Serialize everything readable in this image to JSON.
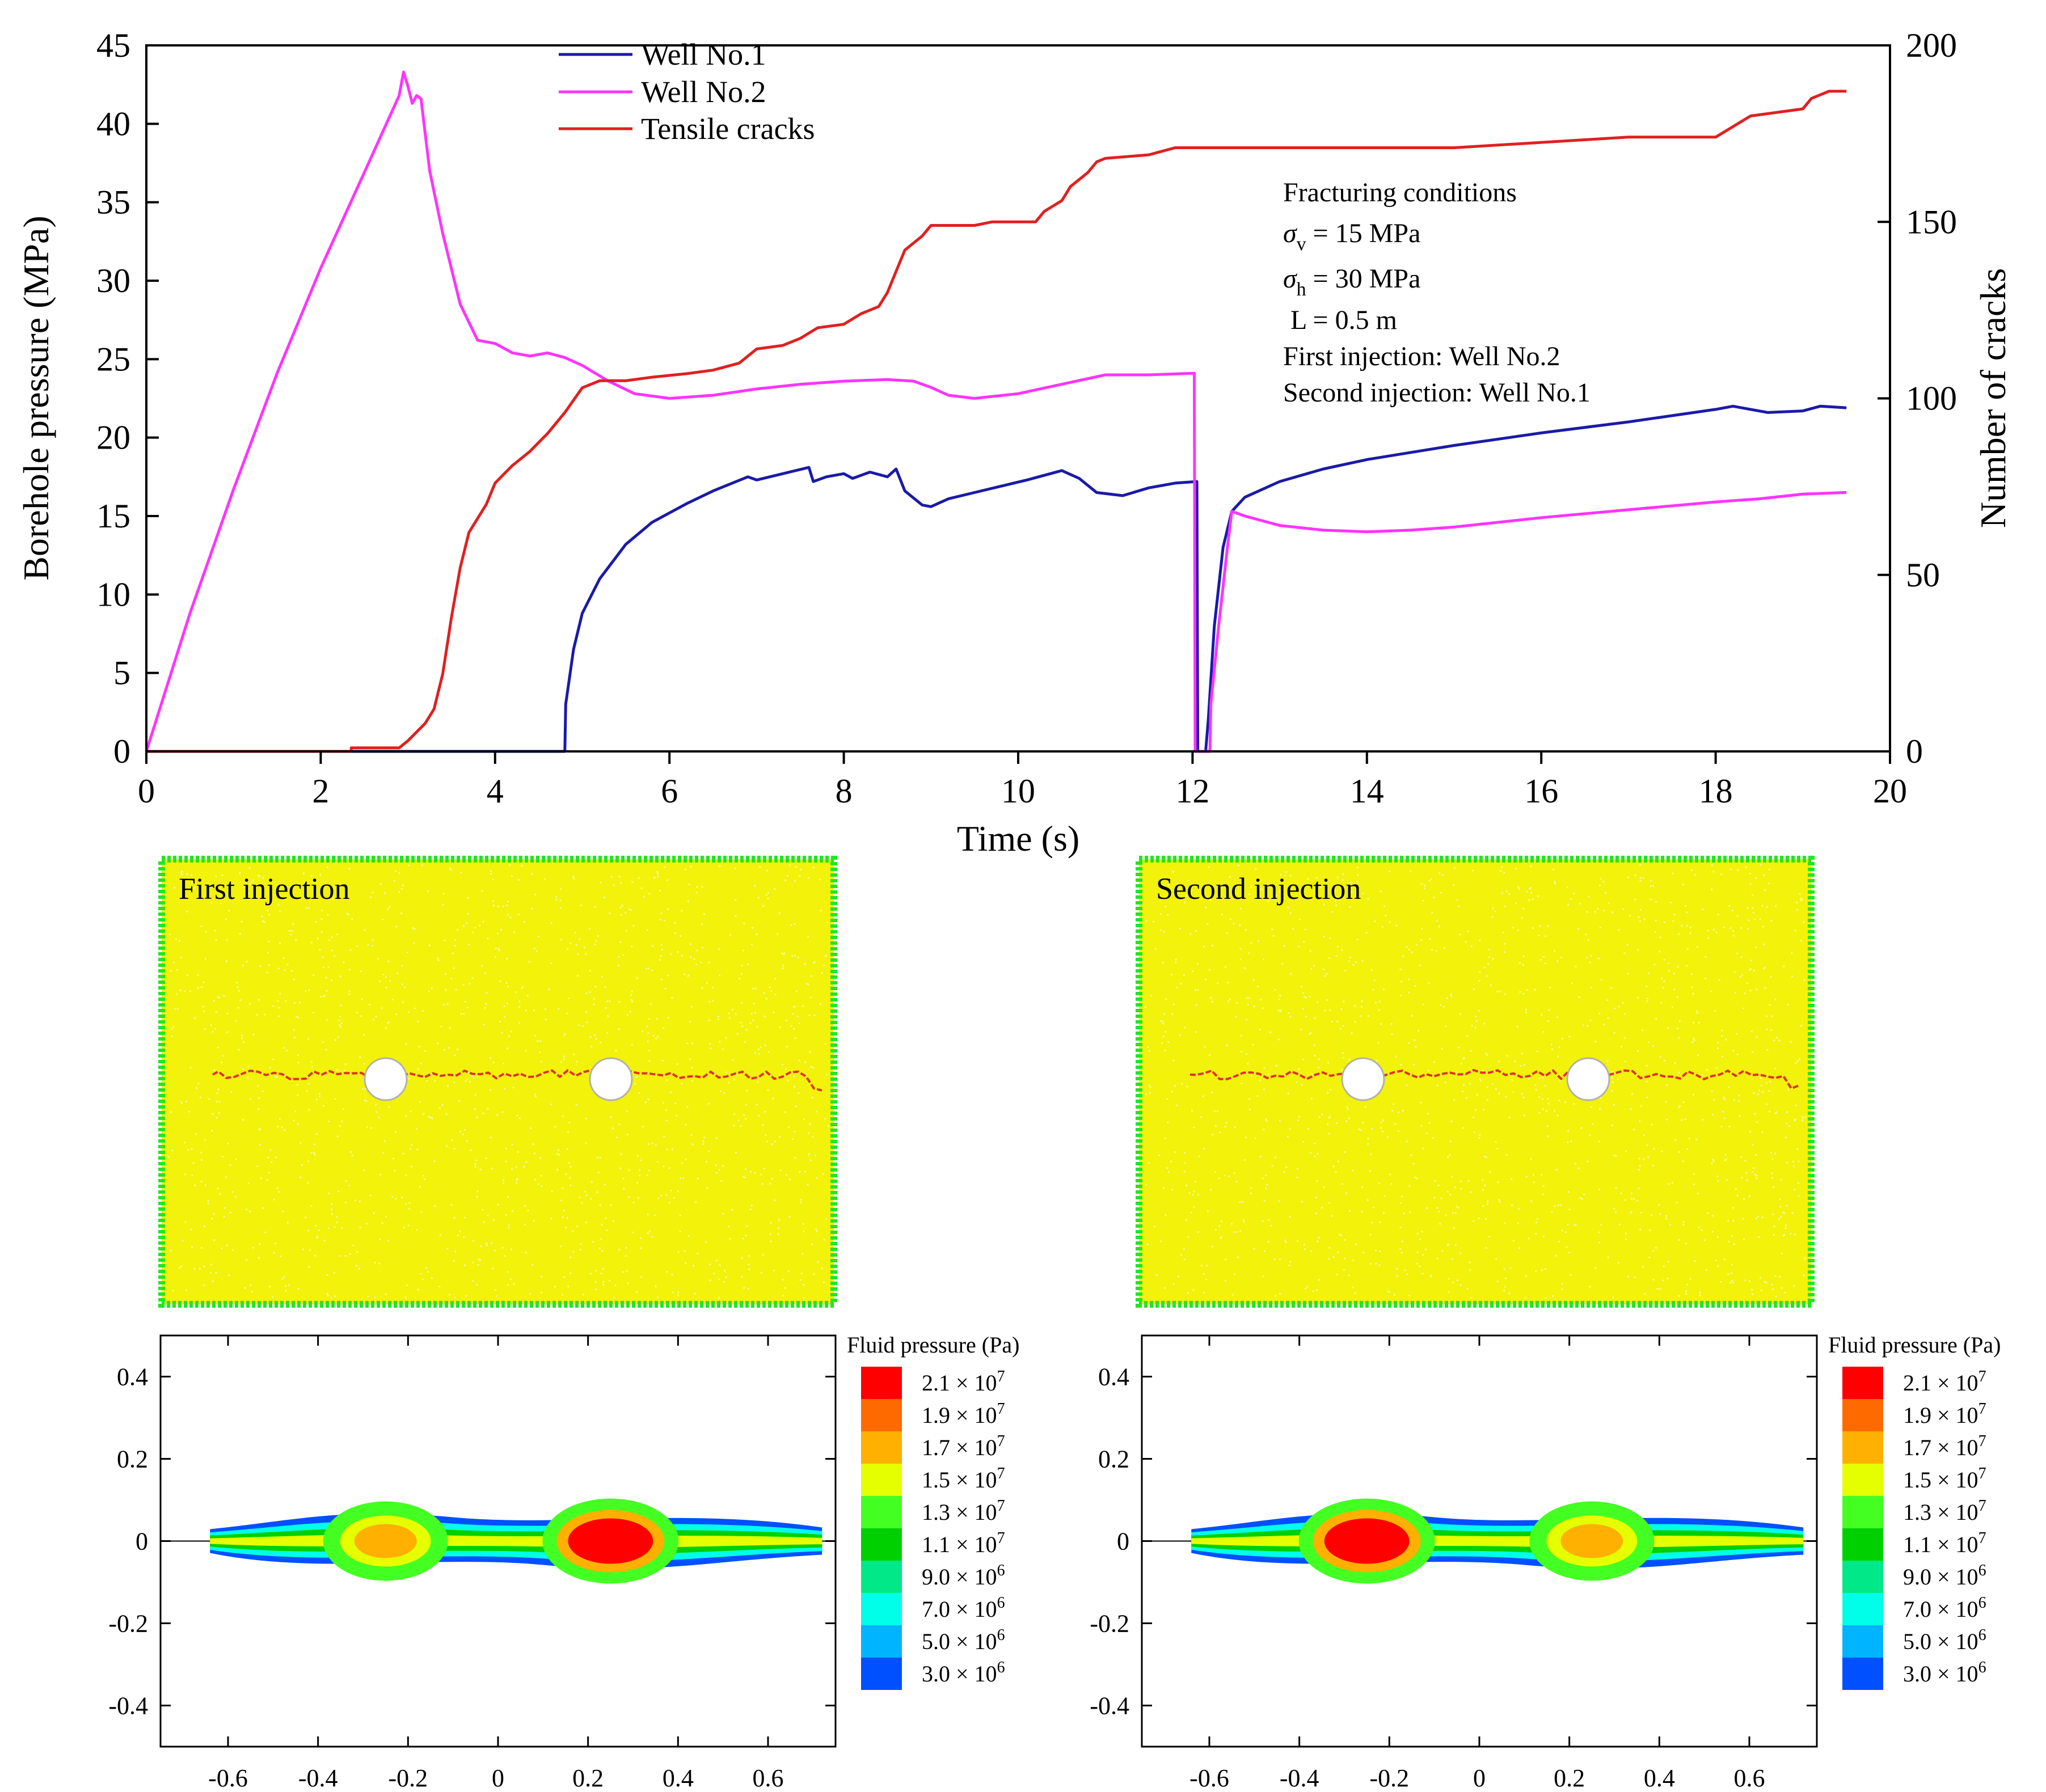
{
  "colors": {
    "well1": "#1a1aa8",
    "well2": "#ff33ff",
    "cracks": "#e02020",
    "rock": "#f2f20a",
    "boundary": "#22e622",
    "crack_line": "#e03030"
  },
  "chart_data": [
    {
      "type": "line",
      "title": "",
      "xlabel": "Time (s)",
      "ylabel": "Borehole pressure (MPa)",
      "y2label": "Number of cracks",
      "xlim": [
        0,
        20
      ],
      "ylim": [
        0,
        45
      ],
      "y2lim": [
        0,
        200
      ],
      "x_ticks": [
        "0",
        "2",
        "4",
        "6",
        "8",
        "10",
        "12",
        "14",
        "16",
        "18",
        "20"
      ],
      "y_ticks": [
        "0",
        "5",
        "10",
        "15",
        "20",
        "25",
        "30",
        "35",
        "40",
        "45"
      ],
      "y2_ticks": [
        "0",
        "50",
        "100",
        "150",
        "200"
      ],
      "series": [
        {
          "name": "Well No.1",
          "axis": "left",
          "color": "#1a1aa8",
          "points": [
            [
              2.3,
              0
            ],
            [
              4.8,
              0
            ],
            [
              4.81,
              3
            ],
            [
              4.9,
              6.5
            ],
            [
              5.0,
              8.8
            ],
            [
              5.2,
              11
            ],
            [
              5.5,
              13.2
            ],
            [
              5.8,
              14.6
            ],
            [
              6.2,
              15.8
            ],
            [
              6.5,
              16.6
            ],
            [
              6.9,
              17.5
            ],
            [
              7.0,
              17.3
            ],
            [
              7.3,
              17.7
            ],
            [
              7.6,
              18.1
            ],
            [
              7.65,
              17.2
            ],
            [
              7.8,
              17.5
            ],
            [
              8.0,
              17.7
            ],
            [
              8.1,
              17.4
            ],
            [
              8.3,
              17.8
            ],
            [
              8.5,
              17.5
            ],
            [
              8.6,
              18.0
            ],
            [
              8.7,
              16.6
            ],
            [
              8.9,
              15.7
            ],
            [
              9.0,
              15.6
            ],
            [
              9.2,
              16.1
            ],
            [
              9.5,
              16.5
            ],
            [
              9.8,
              16.9
            ],
            [
              10.1,
              17.3
            ],
            [
              10.5,
              17.9
            ],
            [
              10.7,
              17.4
            ],
            [
              10.9,
              16.5
            ],
            [
              11.2,
              16.3
            ],
            [
              11.5,
              16.8
            ],
            [
              11.8,
              17.1
            ],
            [
              12.05,
              17.2
            ],
            [
              12.06,
              0
            ],
            [
              12.15,
              0
            ],
            [
              12.18,
              2
            ],
            [
              12.25,
              8
            ],
            [
              12.35,
              13
            ],
            [
              12.45,
              15.3
            ],
            [
              12.6,
              16.2
            ],
            [
              13.0,
              17.2
            ],
            [
              13.5,
              18.0
            ],
            [
              14.0,
              18.6
            ],
            [
              15.0,
              19.5
            ],
            [
              16.0,
              20.3
            ],
            [
              17.0,
              21.0
            ],
            [
              18.0,
              21.8
            ],
            [
              18.2,
              22.0
            ],
            [
              18.4,
              21.8
            ],
            [
              18.6,
              21.6
            ],
            [
              19.0,
              21.7
            ],
            [
              19.2,
              22.0
            ],
            [
              19.5,
              21.9
            ]
          ]
        },
        {
          "name": "Well No.2",
          "axis": "left",
          "color": "#ff33ff",
          "points": [
            [
              0,
              0
            ],
            [
              0.5,
              8.8
            ],
            [
              1.0,
              16.7
            ],
            [
              1.5,
              24.1
            ],
            [
              2.0,
              30.8
            ],
            [
              2.5,
              36.9
            ],
            [
              2.9,
              41.8
            ],
            [
              2.95,
              43.3
            ],
            [
              3.0,
              42.4
            ],
            [
              3.05,
              41.3
            ],
            [
              3.1,
              41.8
            ],
            [
              3.15,
              41.6
            ],
            [
              3.25,
              37
            ],
            [
              3.4,
              33
            ],
            [
              3.6,
              28.5
            ],
            [
              3.8,
              26.2
            ],
            [
              4.0,
              26.0
            ],
            [
              4.2,
              25.4
            ],
            [
              4.4,
              25.2
            ],
            [
              4.6,
              25.4
            ],
            [
              4.8,
              25.1
            ],
            [
              5.0,
              24.6
            ],
            [
              5.3,
              23.6
            ],
            [
              5.6,
              22.8
            ],
            [
              6.0,
              22.5
            ],
            [
              6.5,
              22.7
            ],
            [
              7.0,
              23.1
            ],
            [
              7.5,
              23.4
            ],
            [
              8.0,
              23.6
            ],
            [
              8.5,
              23.7
            ],
            [
              8.8,
              23.6
            ],
            [
              9.0,
              23.2
            ],
            [
              9.2,
              22.7
            ],
            [
              9.5,
              22.5
            ],
            [
              10.0,
              22.8
            ],
            [
              10.5,
              23.4
            ],
            [
              11.0,
              24.0
            ],
            [
              11.5,
              24.0
            ],
            [
              12.0,
              24.1
            ],
            [
              12.02,
              24.1
            ],
            [
              12.03,
              0
            ],
            [
              12.2,
              0
            ],
            [
              12.21,
              3
            ],
            [
              12.3,
              8
            ],
            [
              12.4,
              13
            ],
            [
              12.45,
              15.3
            ],
            [
              12.6,
              15.0
            ],
            [
              13.0,
              14.4
            ],
            [
              13.5,
              14.1
            ],
            [
              14.0,
              14.0
            ],
            [
              14.5,
              14.1
            ],
            [
              15.0,
              14.3
            ],
            [
              16.0,
              14.9
            ],
            [
              17.0,
              15.4
            ],
            [
              18.0,
              15.9
            ],
            [
              18.5,
              16.1
            ],
            [
              19.0,
              16.4
            ],
            [
              19.5,
              16.5
            ]
          ]
        },
        {
          "name": "Tensile cracks",
          "axis": "right",
          "color": "#e02020",
          "points": [
            [
              0,
              0
            ],
            [
              2.35,
              0
            ],
            [
              2.35,
              1
            ],
            [
              2.9,
              1
            ],
            [
              3.0,
              3
            ],
            [
              3.2,
              8
            ],
            [
              3.3,
              12
            ],
            [
              3.4,
              22
            ],
            [
              3.5,
              38
            ],
            [
              3.6,
              52
            ],
            [
              3.7,
              62
            ],
            [
              3.8,
              66
            ],
            [
              3.9,
              70
            ],
            [
              4.0,
              76
            ],
            [
              4.2,
              81
            ],
            [
              4.4,
              85
            ],
            [
              4.6,
              90
            ],
            [
              4.8,
              96
            ],
            [
              5.0,
              103
            ],
            [
              5.2,
              105
            ],
            [
              5.5,
              105
            ],
            [
              5.8,
              106
            ],
            [
              6.2,
              107
            ],
            [
              6.5,
              108
            ],
            [
              6.8,
              110
            ],
            [
              7.0,
              114
            ],
            [
              7.3,
              115
            ],
            [
              7.5,
              117
            ],
            [
              7.7,
              120
            ],
            [
              8.0,
              121
            ],
            [
              8.2,
              124
            ],
            [
              8.4,
              126
            ],
            [
              8.5,
              130
            ],
            [
              8.6,
              136
            ],
            [
              8.7,
              142
            ],
            [
              8.9,
              146
            ],
            [
              9.0,
              149
            ],
            [
              9.5,
              149
            ],
            [
              9.7,
              150
            ],
            [
              10.2,
              150
            ],
            [
              10.3,
              153
            ],
            [
              10.5,
              156
            ],
            [
              10.6,
              160
            ],
            [
              10.8,
              164
            ],
            [
              10.9,
              167
            ],
            [
              11.0,
              168
            ],
            [
              11.5,
              169
            ],
            [
              11.8,
              171
            ],
            [
              12.0,
              171
            ],
            [
              15.0,
              171
            ],
            [
              17.0,
              174
            ],
            [
              18.0,
              174
            ],
            [
              18.2,
              177
            ],
            [
              18.4,
              180
            ],
            [
              19.0,
              182
            ],
            [
              19.1,
              185
            ],
            [
              19.3,
              187
            ],
            [
              19.5,
              187
            ]
          ]
        }
      ],
      "legend": [
        "Well No.1",
        "Well No.2",
        "Tensile cracks"
      ],
      "legend_position": "top-center",
      "annotations": {
        "title": "Fracturing conditions",
        "sigma_v_sym": "σ",
        "sigma_v_sub": "v",
        "sigma_v_val": " = 15 MPa",
        "sigma_h_sym": "σ",
        "sigma_h_sub": "h",
        "sigma_h_val": " = 30 MPa",
        "length": "L = 0.5 m",
        "first": "First injection: Well No.2",
        "second": "Second injection: Well No.1"
      }
    },
    {
      "type": "heatmap",
      "title": "First injection",
      "xlim": [
        -0.75,
        0.75
      ],
      "ylim": [
        -0.5,
        0.5
      ],
      "x_ticks": [
        "-0.6",
        "-0.4",
        "-0.2",
        "0",
        "0.2",
        "0.4",
        "0.6"
      ],
      "y_ticks": [
        "0.4",
        "0.2",
        "0",
        "-0.2",
        "-0.4"
      ],
      "hot_spot_x": 0.25,
      "warm_spot_x": -0.25,
      "colorbar_title": "Fluid pressure (Pa)",
      "colorbar_labels": [
        {
          "mant": "2.1",
          "exp": "7"
        },
        {
          "mant": "1.9",
          "exp": "7"
        },
        {
          "mant": "1.7",
          "exp": "7"
        },
        {
          "mant": "1.5",
          "exp": "7"
        },
        {
          "mant": "1.3",
          "exp": "7"
        },
        {
          "mant": "1.1",
          "exp": "7"
        },
        {
          "mant": "9.0",
          "exp": "6"
        },
        {
          "mant": "7.0",
          "exp": "6"
        },
        {
          "mant": "5.0",
          "exp": "6"
        },
        {
          "mant": "3.0",
          "exp": "6"
        }
      ]
    },
    {
      "type": "heatmap",
      "title": "Second injection",
      "xlim": [
        -0.75,
        0.75
      ],
      "ylim": [
        -0.5,
        0.5
      ],
      "x_ticks": [
        "-0.6",
        "-0.4",
        "-0.2",
        "0",
        "0.2",
        "0.4",
        "0.6"
      ],
      "y_ticks": [
        "0.4",
        "0.2",
        "0",
        "-0.2",
        "-0.4"
      ],
      "hot_spot_x": -0.25,
      "warm_spot_x": 0.25,
      "colorbar_title": "Fluid pressure (Pa)",
      "colorbar_labels": [
        {
          "mant": "2.1",
          "exp": "7"
        },
        {
          "mant": "1.9",
          "exp": "7"
        },
        {
          "mant": "1.7",
          "exp": "7"
        },
        {
          "mant": "1.5",
          "exp": "7"
        },
        {
          "mant": "1.3",
          "exp": "7"
        },
        {
          "mant": "1.1",
          "exp": "7"
        },
        {
          "mant": "9.0",
          "exp": "6"
        },
        {
          "mant": "7.0",
          "exp": "6"
        },
        {
          "mant": "5.0",
          "exp": "6"
        },
        {
          "mant": "3.0",
          "exp": "6"
        }
      ]
    }
  ],
  "colorbar_colors": [
    "#ff0000",
    "#ff6a00",
    "#ffb000",
    "#e6ff00",
    "#44ff22",
    "#00d000",
    "#00e888",
    "#00ffe8",
    "#00b4ff",
    "#0050ff"
  ],
  "times_sign": "×",
  "panels": {
    "first_title": "First injection",
    "second_title": "Second injection"
  }
}
